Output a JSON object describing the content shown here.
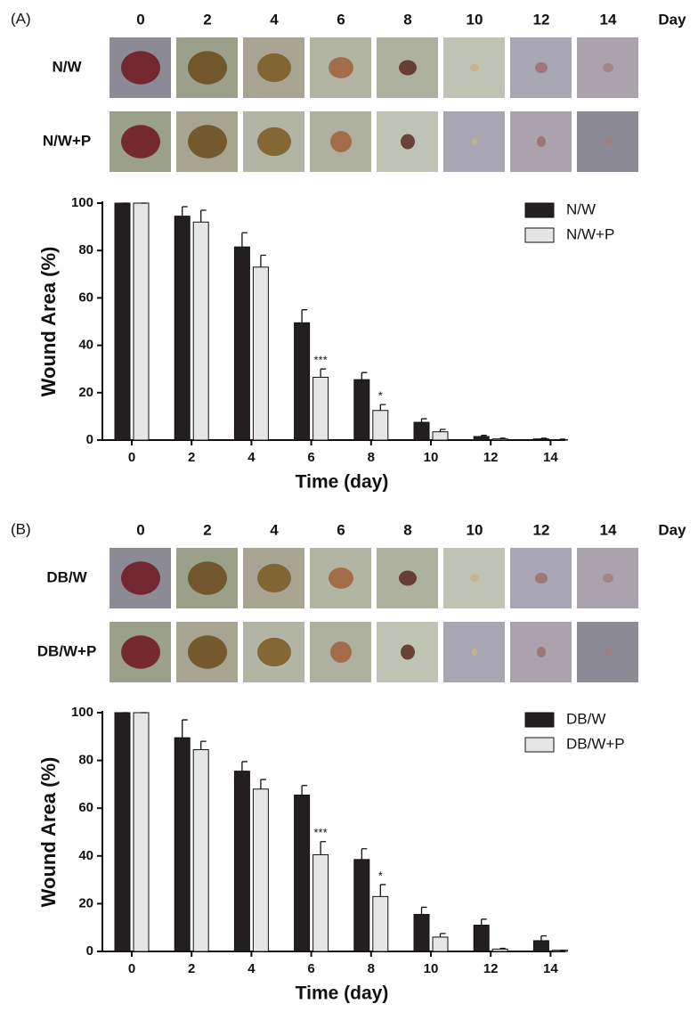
{
  "chart_data": [
    {
      "type": "bar",
      "panel": "(A)",
      "photo_columns": [
        "0",
        "2",
        "4",
        "6",
        "8",
        "10",
        "12",
        "14"
      ],
      "photo_axis_label": "Day",
      "photo_rows": [
        "N/W",
        "N/W+P"
      ],
      "categories": [
        "0",
        "2",
        "4",
        "6",
        "8",
        "10",
        "12",
        "14"
      ],
      "x_label": "Time (day)",
      "y_label": "Wound Area (%)",
      "ylim": [
        0,
        100
      ],
      "yticks": [
        0,
        20,
        40,
        60,
        80,
        100
      ],
      "legend": "top-right",
      "series": [
        {
          "name": "N/W",
          "color": "#231f20",
          "values": [
            100,
            94.5,
            81.5,
            49.5,
            25.5,
            7.5,
            1.5,
            0.5
          ],
          "errors": [
            0,
            4,
            6,
            5.5,
            3,
            1.5,
            0.5,
            0.3
          ]
        },
        {
          "name": "N/W+P",
          "color": "#e6e6e6",
          "values": [
            100,
            92,
            73,
            26.5,
            12.5,
            3.5,
            0.5,
            0.2
          ],
          "errors": [
            0,
            5,
            5,
            3.5,
            2.5,
            1,
            0.3,
            0.2
          ],
          "significance": [
            null,
            null,
            null,
            "***",
            "*",
            null,
            null,
            null
          ]
        }
      ]
    },
    {
      "type": "bar",
      "panel": "(B)",
      "photo_columns": [
        "0",
        "2",
        "4",
        "6",
        "8",
        "10",
        "12",
        "14"
      ],
      "photo_axis_label": "Day",
      "photo_rows": [
        "DB/W",
        "DB/W+P"
      ],
      "categories": [
        "0",
        "2",
        "4",
        "6",
        "8",
        "10",
        "12",
        "14"
      ],
      "x_label": "Time (day)",
      "y_label": "Wound Area (%)",
      "ylim": [
        0,
        100
      ],
      "yticks": [
        0,
        20,
        40,
        60,
        80,
        100
      ],
      "legend": "top-right",
      "series": [
        {
          "name": "DB/W",
          "color": "#231f20",
          "values": [
            100,
            89.5,
            75.5,
            65.5,
            38.5,
            15.5,
            11,
            4.5
          ],
          "errors": [
            0,
            7.5,
            4,
            4,
            4.5,
            3,
            2.5,
            2
          ]
        },
        {
          "name": "DB/W+P",
          "color": "#e6e6e6",
          "values": [
            100,
            84.5,
            68,
            40.5,
            23,
            6,
            1,
            0.5
          ],
          "errors": [
            0,
            3.5,
            4,
            5.5,
            5,
            1.5,
            0.3,
            0
          ],
          "significance": [
            null,
            null,
            null,
            "***",
            "*",
            null,
            null,
            null
          ]
        }
      ]
    }
  ]
}
